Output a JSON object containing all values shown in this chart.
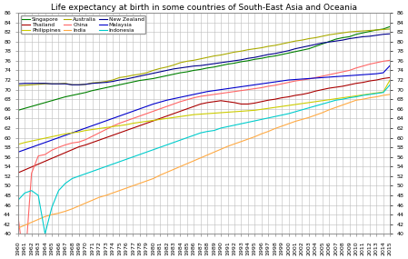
{
  "title": "Life expectancy at birth in some countries of South-East Asia and Oceania",
  "xlim": [
    1960,
    2015
  ],
  "ylim": [
    40,
    86
  ],
  "yticks": [
    40,
    42,
    44,
    46,
    48,
    50,
    52,
    54,
    56,
    58,
    60,
    62,
    64,
    66,
    68,
    70,
    72,
    74,
    76,
    78,
    80,
    82,
    84,
    86
  ],
  "countries": {
    "Singapore": {
      "color": "#008000",
      "data": {
        "1960": 65.7,
        "1961": 66.1,
        "1962": 66.5,
        "1963": 66.9,
        "1964": 67.3,
        "1965": 67.7,
        "1966": 68.1,
        "1967": 68.5,
        "1968": 68.8,
        "1969": 69.1,
        "1970": 69.4,
        "1971": 69.8,
        "1972": 70.1,
        "1973": 70.4,
        "1974": 70.7,
        "1975": 71.0,
        "1976": 71.3,
        "1977": 71.6,
        "1978": 71.9,
        "1979": 72.1,
        "1980": 72.3,
        "1981": 72.6,
        "1982": 72.9,
        "1983": 73.2,
        "1984": 73.5,
        "1985": 73.7,
        "1986": 74.0,
        "1987": 74.2,
        "1988": 74.5,
        "1989": 74.7,
        "1990": 75.0,
        "1991": 75.3,
        "1992": 75.5,
        "1993": 75.8,
        "1994": 76.0,
        "1995": 76.3,
        "1996": 76.5,
        "1997": 76.8,
        "1998": 77.0,
        "1999": 77.3,
        "2000": 77.6,
        "2001": 77.9,
        "2002": 78.2,
        "2003": 78.5,
        "2004": 79.0,
        "2005": 79.5,
        "2006": 80.0,
        "2007": 80.5,
        "2008": 80.8,
        "2009": 81.0,
        "2010": 81.5,
        "2011": 81.8,
        "2012": 82.1,
        "2013": 82.4,
        "2014": 82.6,
        "2015": 83.1
      }
    },
    "Australia": {
      "color": "#aaaa00",
      "data": {
        "1960": 70.8,
        "1961": 70.9,
        "1962": 71.0,
        "1963": 71.1,
        "1964": 71.2,
        "1965": 71.2,
        "1966": 71.2,
        "1967": 71.3,
        "1968": 71.0,
        "1969": 71.0,
        "1970": 71.1,
        "1971": 71.4,
        "1972": 71.5,
        "1973": 71.7,
        "1974": 72.0,
        "1975": 72.5,
        "1976": 72.7,
        "1977": 73.0,
        "1978": 73.2,
        "1979": 73.5,
        "1980": 74.0,
        "1981": 74.4,
        "1982": 74.7,
        "1983": 75.1,
        "1984": 75.6,
        "1985": 75.9,
        "1986": 76.1,
        "1987": 76.4,
        "1988": 76.7,
        "1989": 77.0,
        "1990": 77.2,
        "1991": 77.5,
        "1992": 77.8,
        "1993": 78.0,
        "1994": 78.3,
        "1995": 78.5,
        "1996": 78.7,
        "1997": 79.0,
        "1998": 79.2,
        "1999": 79.5,
        "2000": 79.8,
        "2001": 80.1,
        "2002": 80.3,
        "2003": 80.6,
        "2004": 80.8,
        "2005": 81.1,
        "2006": 81.4,
        "2007": 81.6,
        "2008": 81.8,
        "2009": 82.0,
        "2010": 82.1,
        "2011": 82.2,
        "2012": 82.3,
        "2013": 82.4,
        "2014": 82.5,
        "2015": 82.6
      }
    },
    "New Zealand": {
      "color": "#00008b",
      "data": {
        "1960": 71.2,
        "1961": 71.3,
        "1962": 71.3,
        "1963": 71.3,
        "1964": 71.3,
        "1965": 71.2,
        "1966": 71.2,
        "1967": 71.2,
        "1968": 71.0,
        "1969": 71.0,
        "1970": 71.1,
        "1971": 71.3,
        "1972": 71.4,
        "1973": 71.5,
        "1974": 71.7,
        "1975": 72.0,
        "1976": 72.2,
        "1977": 72.5,
        "1978": 72.8,
        "1979": 73.1,
        "1980": 73.4,
        "1981": 73.7,
        "1982": 74.0,
        "1983": 74.3,
        "1984": 74.5,
        "1985": 74.7,
        "1986": 74.9,
        "1987": 75.0,
        "1988": 75.2,
        "1989": 75.4,
        "1990": 75.6,
        "1991": 75.8,
        "1992": 76.0,
        "1993": 76.2,
        "1994": 76.5,
        "1995": 76.7,
        "1996": 77.0,
        "1997": 77.3,
        "1998": 77.5,
        "1999": 77.8,
        "2000": 78.1,
        "2001": 78.5,
        "2002": 78.8,
        "2003": 79.1,
        "2004": 79.4,
        "2005": 79.7,
        "2006": 79.9,
        "2007": 80.1,
        "2008": 80.3,
        "2009": 80.6,
        "2010": 80.8,
        "2011": 81.0,
        "2012": 81.1,
        "2013": 81.3,
        "2014": 81.5,
        "2015": 81.6
      }
    },
    "Thailand": {
      "color": "#aa0000",
      "data": {
        "1960": 52.7,
        "1961": 53.3,
        "1962": 53.9,
        "1963": 54.5,
        "1964": 55.1,
        "1965": 55.7,
        "1966": 56.3,
        "1967": 56.9,
        "1968": 57.5,
        "1969": 58.1,
        "1970": 58.5,
        "1971": 59.0,
        "1972": 59.5,
        "1973": 60.0,
        "1974": 60.5,
        "1975": 61.0,
        "1976": 61.5,
        "1977": 62.0,
        "1978": 62.5,
        "1979": 63.0,
        "1980": 63.5,
        "1981": 64.0,
        "1982": 64.5,
        "1983": 65.0,
        "1984": 65.5,
        "1985": 66.0,
        "1986": 66.5,
        "1987": 67.0,
        "1988": 67.3,
        "1989": 67.5,
        "1990": 67.7,
        "1991": 67.5,
        "1992": 67.3,
        "1993": 67.0,
        "1994": 67.0,
        "1995": 67.2,
        "1996": 67.5,
        "1997": 67.8,
        "1998": 68.0,
        "1999": 68.3,
        "2000": 68.5,
        "2001": 68.8,
        "2002": 69.0,
        "2003": 69.3,
        "2004": 69.7,
        "2005": 70.0,
        "2006": 70.3,
        "2007": 70.5,
        "2008": 70.7,
        "2009": 71.0,
        "2010": 71.3,
        "2011": 71.5,
        "2012": 71.8,
        "2013": 72.0,
        "2014": 72.3,
        "2015": 72.5
      }
    },
    "China": {
      "color": "#ff6666",
      "data": {
        "1960": 43.7,
        "1961": 33.0,
        "1962": 52.6,
        "1963": 56.2,
        "1964": 56.5,
        "1965": 57.4,
        "1966": 58.0,
        "1967": 58.5,
        "1968": 58.9,
        "1969": 59.1,
        "1970": 59.6,
        "1971": 60.3,
        "1972": 61.0,
        "1973": 61.7,
        "1974": 62.4,
        "1975": 63.0,
        "1976": 63.5,
        "1977": 64.0,
        "1978": 64.5,
        "1979": 65.0,
        "1980": 65.5,
        "1981": 66.0,
        "1982": 66.5,
        "1983": 67.0,
        "1984": 67.5,
        "1985": 67.9,
        "1986": 68.3,
        "1987": 68.6,
        "1988": 68.8,
        "1989": 69.0,
        "1990": 69.2,
        "1991": 69.4,
        "1992": 69.6,
        "1993": 69.8,
        "1994": 70.0,
        "1995": 70.2,
        "1996": 70.4,
        "1997": 70.7,
        "1998": 70.9,
        "1999": 71.2,
        "2000": 71.5,
        "2001": 71.8,
        "2002": 72.0,
        "2003": 72.2,
        "2004": 72.5,
        "2005": 72.8,
        "2006": 73.1,
        "2007": 73.4,
        "2008": 73.7,
        "2009": 74.0,
        "2010": 74.5,
        "2011": 74.9,
        "2012": 75.3,
        "2013": 75.6,
        "2014": 75.9,
        "2015": 76.1
      }
    },
    "Malaysia": {
      "color": "#0000cc",
      "data": {
        "1960": 57.0,
        "1961": 57.5,
        "1962": 58.0,
        "1963": 58.5,
        "1964": 59.0,
        "1965": 59.5,
        "1966": 60.0,
        "1967": 60.5,
        "1968": 61.0,
        "1969": 61.5,
        "1970": 62.0,
        "1971": 62.5,
        "1972": 63.0,
        "1973": 63.5,
        "1974": 64.0,
        "1975": 64.5,
        "1976": 65.0,
        "1977": 65.5,
        "1978": 66.0,
        "1979": 66.5,
        "1980": 67.0,
        "1981": 67.4,
        "1982": 67.8,
        "1983": 68.1,
        "1984": 68.4,
        "1985": 68.7,
        "1986": 69.0,
        "1987": 69.3,
        "1988": 69.6,
        "1989": 69.8,
        "1990": 70.0,
        "1991": 70.2,
        "1992": 70.4,
        "1993": 70.6,
        "1994": 70.8,
        "1995": 71.0,
        "1996": 71.2,
        "1997": 71.4,
        "1998": 71.6,
        "1999": 71.8,
        "2000": 72.0,
        "2001": 72.1,
        "2002": 72.2,
        "2003": 72.3,
        "2004": 72.4,
        "2005": 72.5,
        "2006": 72.6,
        "2007": 72.7,
        "2008": 72.8,
        "2009": 72.9,
        "2010": 73.0,
        "2011": 73.1,
        "2012": 73.2,
        "2013": 73.3,
        "2014": 73.5,
        "2015": 75.0
      }
    },
    "Philippines": {
      "color": "#cccc00",
      "data": {
        "1960": 58.6,
        "1961": 59.0,
        "1962": 59.3,
        "1963": 59.6,
        "1964": 59.9,
        "1965": 60.2,
        "1966": 60.5,
        "1967": 60.8,
        "1968": 61.0,
        "1969": 61.2,
        "1970": 61.5,
        "1971": 61.7,
        "1972": 61.9,
        "1973": 62.1,
        "1974": 62.3,
        "1975": 62.5,
        "1976": 62.7,
        "1977": 63.0,
        "1978": 63.2,
        "1979": 63.4,
        "1980": 63.6,
        "1981": 63.8,
        "1982": 64.0,
        "1983": 64.2,
        "1984": 64.4,
        "1985": 64.6,
        "1986": 64.8,
        "1987": 64.9,
        "1988": 65.0,
        "1989": 65.1,
        "1990": 65.2,
        "1991": 65.3,
        "1992": 65.4,
        "1993": 65.5,
        "1994": 65.6,
        "1995": 65.7,
        "1996": 65.9,
        "1997": 66.1,
        "1998": 66.3,
        "1999": 66.5,
        "2000": 66.7,
        "2001": 66.9,
        "2002": 67.1,
        "2003": 67.3,
        "2004": 67.5,
        "2005": 67.7,
        "2006": 67.9,
        "2007": 68.1,
        "2008": 68.3,
        "2009": 68.5,
        "2010": 68.7,
        "2011": 68.9,
        "2012": 69.1,
        "2013": 69.3,
        "2014": 69.5,
        "2015": 72.0
      }
    },
    "India": {
      "color": "#ffaa44",
      "data": {
        "1960": 41.2,
        "1961": 41.8,
        "1962": 42.4,
        "1963": 43.0,
        "1964": 43.6,
        "1965": 44.0,
        "1966": 44.3,
        "1967": 44.7,
        "1968": 45.2,
        "1969": 45.8,
        "1970": 46.4,
        "1971": 47.0,
        "1972": 47.6,
        "1973": 48.0,
        "1974": 48.5,
        "1975": 49.0,
        "1976": 49.5,
        "1977": 50.0,
        "1978": 50.5,
        "1979": 51.0,
        "1980": 51.5,
        "1981": 52.2,
        "1982": 52.8,
        "1983": 53.4,
        "1984": 54.0,
        "1985": 54.6,
        "1986": 55.2,
        "1987": 55.8,
        "1988": 56.4,
        "1989": 57.0,
        "1990": 57.6,
        "1991": 58.2,
        "1992": 58.7,
        "1993": 59.2,
        "1994": 59.7,
        "1995": 60.2,
        "1996": 60.8,
        "1997": 61.3,
        "1998": 61.9,
        "1999": 62.4,
        "2000": 62.9,
        "2001": 63.4,
        "2002": 63.8,
        "2003": 64.2,
        "2004": 64.7,
        "2005": 65.2,
        "2006": 65.8,
        "2007": 66.3,
        "2008": 66.8,
        "2009": 67.3,
        "2010": 67.8,
        "2011": 68.0,
        "2012": 68.3,
        "2013": 68.5,
        "2014": 68.8,
        "2015": 69.0
      }
    },
    "Indonesia": {
      "color": "#00cccc",
      "data": {
        "1960": 47.0,
        "1961": 48.5,
        "1962": 49.0,
        "1963": 48.0,
        "1964": 40.0,
        "1965": 45.5,
        "1966": 49.0,
        "1967": 50.5,
        "1968": 51.5,
        "1969": 52.0,
        "1970": 52.5,
        "1971": 53.0,
        "1972": 53.5,
        "1973": 54.0,
        "1974": 54.5,
        "1975": 55.0,
        "1976": 55.5,
        "1977": 56.0,
        "1978": 56.5,
        "1979": 57.0,
        "1980": 57.5,
        "1981": 58.0,
        "1982": 58.5,
        "1983": 59.0,
        "1984": 59.5,
        "1985": 60.0,
        "1986": 60.5,
        "1987": 61.0,
        "1988": 61.3,
        "1989": 61.5,
        "1990": 62.0,
        "1991": 62.3,
        "1992": 62.6,
        "1993": 62.9,
        "1994": 63.2,
        "1995": 63.5,
        "1996": 63.8,
        "1997": 64.1,
        "1998": 64.4,
        "1999": 64.7,
        "2000": 65.0,
        "2001": 65.4,
        "2002": 65.8,
        "2003": 66.2,
        "2004": 66.6,
        "2005": 67.0,
        "2006": 67.4,
        "2007": 67.8,
        "2008": 68.0,
        "2009": 68.3,
        "2010": 68.5,
        "2011": 68.8,
        "2012": 69.0,
        "2013": 69.2,
        "2014": 69.4,
        "2015": 71.0
      }
    }
  },
  "legend_order": [
    "Singapore",
    "Thailand",
    "Philippines",
    "Australia",
    "China",
    "India",
    "New Zealand",
    "Malaysia",
    "Indonesia"
  ],
  "background_color": "#ffffff",
  "grid_color": "#bbbbbb",
  "title_fontsize": 6.5,
  "tick_fontsize": 4.5
}
